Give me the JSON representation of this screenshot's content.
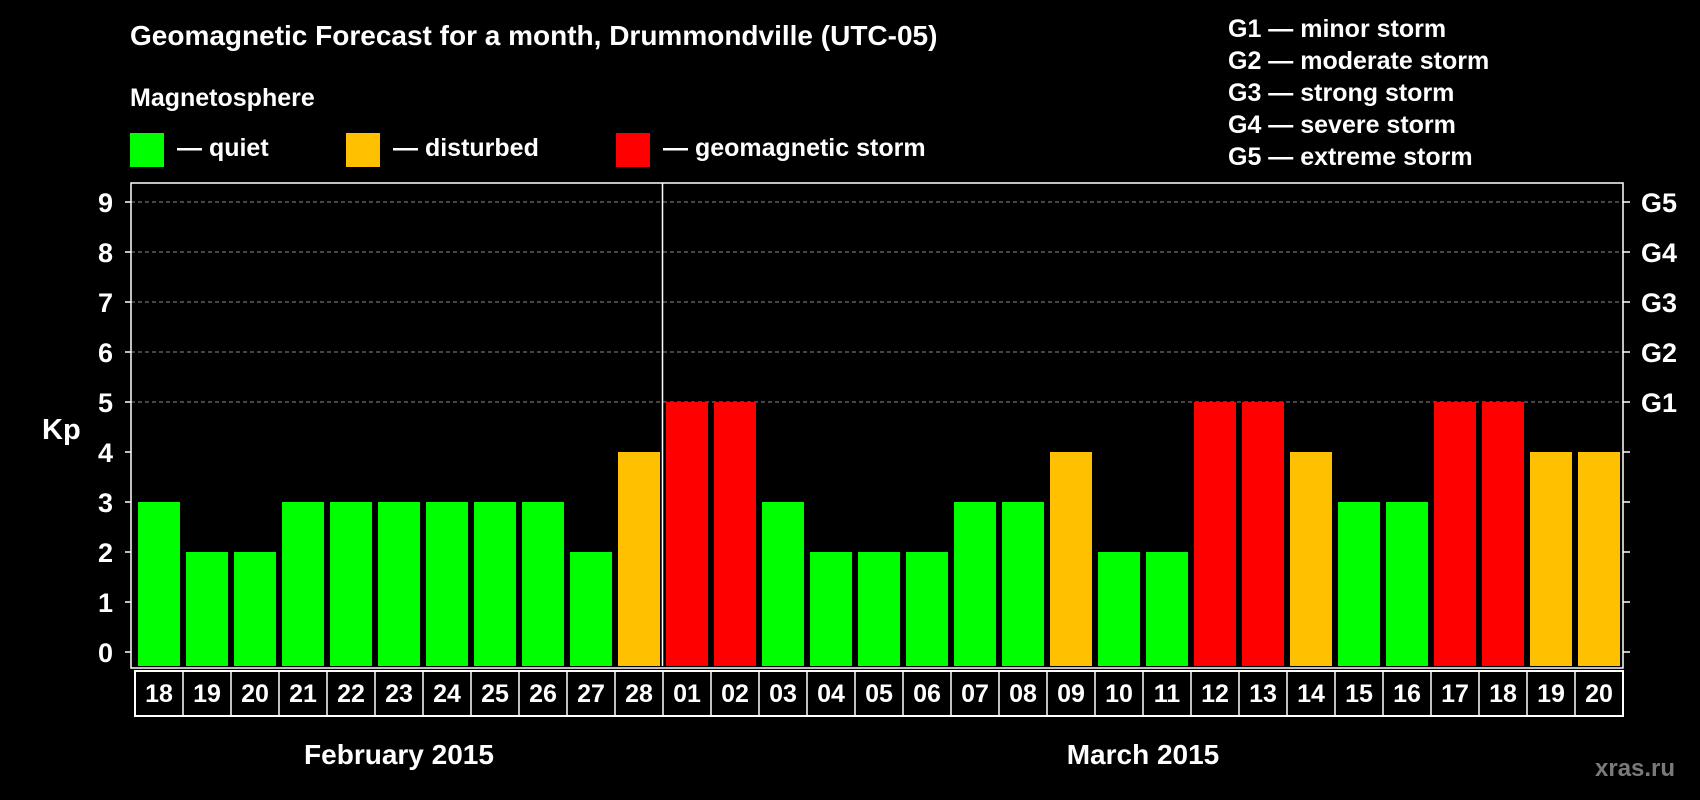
{
  "title": "Geomagnetic Forecast for a month, Drummondville (UTC-05)",
  "legend": {
    "heading": "Magnetosphere",
    "items": [
      {
        "label": "— quiet",
        "color": "#00ff00"
      },
      {
        "label": "— disturbed",
        "color": "#ffc000"
      },
      {
        "label": "— geomagnetic storm",
        "color": "#ff0000"
      }
    ]
  },
  "storm_scale": [
    "G1 — minor storm",
    "G2 — moderate storm",
    "G3 — strong storm",
    "G4 — severe storm",
    "G5 — extreme storm"
  ],
  "watermark": "xras.ru",
  "colors": {
    "quiet": "#00ff00",
    "disturbed": "#ffc000",
    "storm": "#ff0000",
    "grid": "#8a8a8a",
    "axis": "#ffffff"
  },
  "chart_data": {
    "type": "bar",
    "title": "Geomagnetic Forecast for a month, Drummondville (UTC-05)",
    "ylabel": "Kp",
    "ylim": [
      0,
      9
    ],
    "yticks": [
      "0",
      "1",
      "2",
      "3",
      "4",
      "5",
      "6",
      "7",
      "8",
      "9"
    ],
    "right_axis_labels": [
      {
        "value": 5,
        "label": "G1"
      },
      {
        "value": 6,
        "label": "G2"
      },
      {
        "value": 7,
        "label": "G3"
      },
      {
        "value": 8,
        "label": "G4"
      },
      {
        "value": 9,
        "label": "G5"
      }
    ],
    "categories": [
      "18",
      "19",
      "20",
      "21",
      "22",
      "23",
      "24",
      "25",
      "26",
      "27",
      "28",
      "01",
      "02",
      "03",
      "04",
      "05",
      "06",
      "07",
      "08",
      "09",
      "10",
      "11",
      "12",
      "13",
      "14",
      "15",
      "16",
      "17",
      "18",
      "19",
      "20"
    ],
    "values": [
      3,
      2,
      2,
      3,
      3,
      3,
      3,
      3,
      3,
      2,
      4,
      5,
      5,
      3,
      2,
      2,
      2,
      3,
      3,
      4,
      2,
      2,
      5,
      5,
      4,
      3,
      3,
      5,
      5,
      4,
      4
    ],
    "levels": [
      "quiet",
      "quiet",
      "quiet",
      "quiet",
      "quiet",
      "quiet",
      "quiet",
      "quiet",
      "quiet",
      "quiet",
      "disturbed",
      "storm",
      "storm",
      "quiet",
      "quiet",
      "quiet",
      "quiet",
      "quiet",
      "quiet",
      "disturbed",
      "quiet",
      "quiet",
      "storm",
      "storm",
      "disturbed",
      "quiet",
      "quiet",
      "storm",
      "storm",
      "disturbed",
      "disturbed"
    ],
    "months": [
      {
        "label": "February 2015",
        "start_index": 0,
        "count": 11
      },
      {
        "label": "March 2015",
        "start_index": 11,
        "count": 20
      }
    ]
  }
}
